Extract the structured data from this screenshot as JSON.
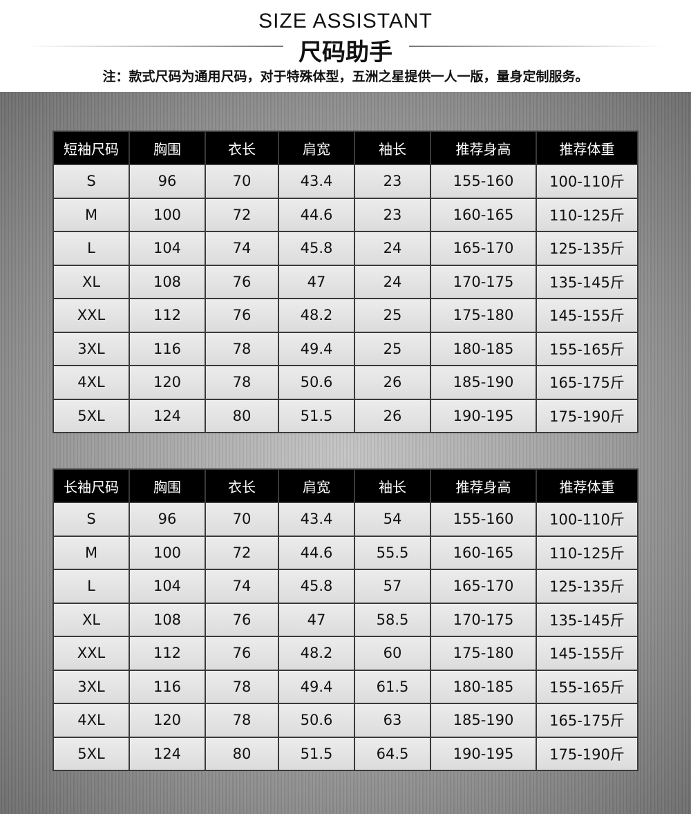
{
  "header": {
    "title_en": "SIZE ASSISTANT",
    "title_cn": "尺码助手",
    "note": "注：款式尺码为通用尺码，对于特殊体型，五洲之星提供一人一版，量身定制服务。"
  },
  "tables": [
    {
      "columns": [
        "短袖尺码",
        "胸围",
        "衣长",
        "肩宽",
        "袖长",
        "推荐身高",
        "推荐体重"
      ],
      "rows": [
        [
          "S",
          "96",
          "70",
          "43.4",
          "23",
          "155-160",
          "100-110斤"
        ],
        [
          "M",
          "100",
          "72",
          "44.6",
          "23",
          "160-165",
          "110-125斤"
        ],
        [
          "L",
          "104",
          "74",
          "45.8",
          "24",
          "165-170",
          "125-135斤"
        ],
        [
          "XL",
          "108",
          "76",
          "47",
          "24",
          "170-175",
          "135-145斤"
        ],
        [
          "XXL",
          "112",
          "76",
          "48.2",
          "25",
          "175-180",
          "145-155斤"
        ],
        [
          "3XL",
          "116",
          "78",
          "49.4",
          "25",
          "180-185",
          "155-165斤"
        ],
        [
          "4XL",
          "120",
          "78",
          "50.6",
          "26",
          "185-190",
          "165-175斤"
        ],
        [
          "5XL",
          "124",
          "80",
          "51.5",
          "26",
          "190-195",
          "175-190斤"
        ]
      ]
    },
    {
      "columns": [
        "长袖尺码",
        "胸围",
        "衣长",
        "肩宽",
        "袖长",
        "推荐身高",
        "推荐体重"
      ],
      "rows": [
        [
          "S",
          "96",
          "70",
          "43.4",
          "54",
          "155-160",
          "100-110斤"
        ],
        [
          "M",
          "100",
          "72",
          "44.6",
          "55.5",
          "160-165",
          "110-125斤"
        ],
        [
          "L",
          "104",
          "74",
          "45.8",
          "57",
          "165-170",
          "125-135斤"
        ],
        [
          "XL",
          "108",
          "76",
          "47",
          "58.5",
          "170-175",
          "135-145斤"
        ],
        [
          "XXL",
          "112",
          "76",
          "48.2",
          "60",
          "175-180",
          "145-155斤"
        ],
        [
          "3XL",
          "116",
          "78",
          "49.4",
          "61.5",
          "180-185",
          "155-165斤"
        ],
        [
          "4XL",
          "120",
          "78",
          "50.6",
          "63",
          "185-190",
          "165-175斤"
        ],
        [
          "5XL",
          "124",
          "80",
          "51.5",
          "64.5",
          "190-195",
          "175-190斤"
        ]
      ]
    }
  ]
}
